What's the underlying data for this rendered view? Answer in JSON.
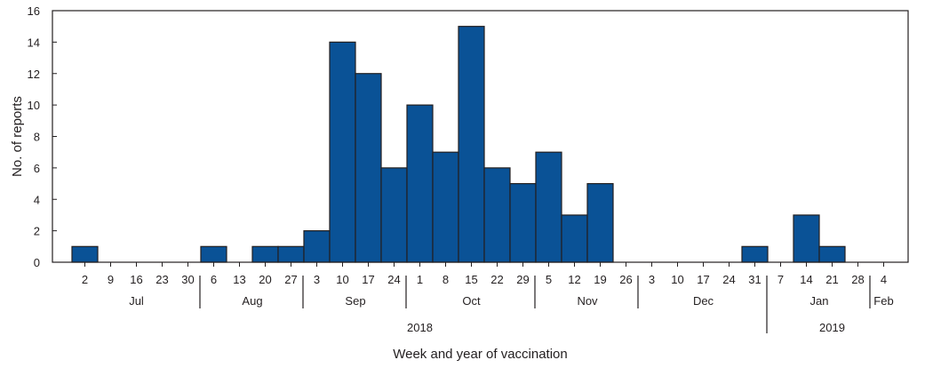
{
  "chart_data": {
    "type": "bar",
    "xlabel": "Week and year of vaccination",
    "ylabel": "No. of reports",
    "ylim": [
      0,
      16
    ],
    "yticks": [
      0,
      2,
      4,
      6,
      8,
      10,
      12,
      14,
      16
    ],
    "grid": false,
    "bar_color": "#0a5296",
    "categories": [
      "2",
      "9",
      "16",
      "23",
      "30",
      "6",
      "13",
      "20",
      "27",
      "3",
      "10",
      "17",
      "24",
      "1",
      "8",
      "15",
      "22",
      "29",
      "5",
      "12",
      "19",
      "26",
      "3",
      "10",
      "17",
      "24",
      "31",
      "7",
      "14",
      "21",
      "28",
      "4"
    ],
    "values": [
      1,
      0,
      0,
      0,
      0,
      1,
      0,
      1,
      1,
      2,
      14,
      12,
      6,
      10,
      7,
      15,
      6,
      5,
      7,
      3,
      5,
      0,
      0,
      0,
      0,
      0,
      1,
      0,
      3,
      1,
      0,
      0
    ],
    "months": [
      {
        "label": "Jul",
        "start": 0,
        "end": 5
      },
      {
        "label": "Aug",
        "start": 5,
        "end": 9
      },
      {
        "label": "Sep",
        "start": 9,
        "end": 13
      },
      {
        "label": "Oct",
        "start": 13,
        "end": 18
      },
      {
        "label": "Nov",
        "start": 18,
        "end": 22
      },
      {
        "label": "Dec",
        "start": 22,
        "end": 27
      },
      {
        "label": "Jan",
        "start": 27,
        "end": 31
      },
      {
        "label": "Feb",
        "start": 31,
        "end": 32
      }
    ],
    "years": [
      {
        "label": "2018",
        "start": 0,
        "end": 27
      },
      {
        "label": "2019",
        "start": 27,
        "end": 32
      }
    ]
  }
}
